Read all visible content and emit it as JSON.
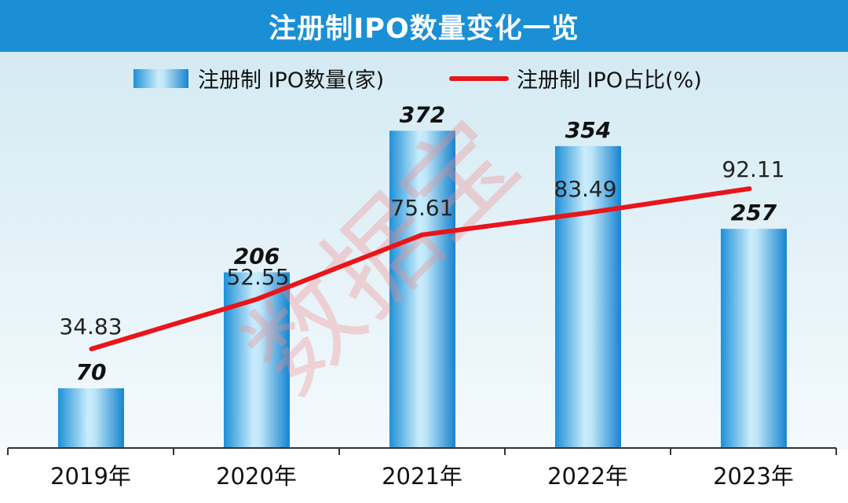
{
  "chart_data": {
    "type": "bar",
    "title": "注册制IPO数量变化一览",
    "categories": [
      "2019年",
      "2020年",
      "2021年",
      "2022年",
      "2023年"
    ],
    "series": [
      {
        "name": "注册制 IPO数量(家)",
        "type": "bar",
        "values": [
          70,
          206,
          372,
          354,
          257
        ]
      },
      {
        "name": "注册制 IPO占比(%)",
        "type": "line",
        "values": [
          34.83,
          52.55,
          75.61,
          83.49,
          92.11
        ]
      }
    ],
    "legend_position": "top-center",
    "watermark": "数据宝",
    "colors": {
      "title_bar": "#1a8fd6",
      "bar": "#1e90d8",
      "line": "#e8151b",
      "watermark": "#f08c8c"
    }
  }
}
